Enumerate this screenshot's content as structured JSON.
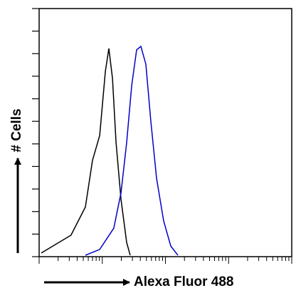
{
  "chart_data": {
    "type": "line",
    "xlabel": "Alexa Fluor 488",
    "ylabel": "# Cells",
    "xscale": "log",
    "xlim": [
      1,
      10000
    ],
    "xticks": [
      1,
      2,
      3,
      4,
      5,
      6,
      7,
      8,
      9,
      10,
      20,
      30,
      40,
      50,
      60,
      70,
      80,
      90,
      100,
      200,
      300,
      400,
      500,
      600,
      700,
      800,
      900,
      1000,
      2000,
      3000,
      4000,
      5000,
      6000,
      7000,
      8000,
      9000,
      10000
    ],
    "ylim": [
      0,
      110
    ],
    "yticks": [
      0,
      10,
      20,
      30,
      40,
      50,
      60,
      70,
      80,
      90,
      100,
      110
    ],
    "series": [
      {
        "color": "#000000",
        "x": [
          1.08,
          3.2,
          5.4,
          7.0,
          9.1,
          11.2,
          12.7,
          14.5,
          16.5,
          19.8,
          24.3,
          27.7
        ],
        "values": [
          1.6,
          9.5,
          22,
          42.7,
          53.7,
          82.2,
          92.3,
          79,
          50.6,
          25.3,
          6.3,
          0.6
        ]
      },
      {
        "color": "#0000cc",
        "x": [
          5.4,
          9.1,
          15.2,
          19.8,
          24.3,
          29.2,
          35.0,
          40.9,
          49.0,
          58.7,
          72.3,
          93.7,
          121.5,
          157.4
        ],
        "values": [
          0.6,
          3.2,
          12.6,
          28.4,
          50.6,
          75.9,
          91.7,
          93.2,
          85.3,
          60,
          34.8,
          15.8,
          4.7,
          0.6
        ]
      }
    ]
  }
}
